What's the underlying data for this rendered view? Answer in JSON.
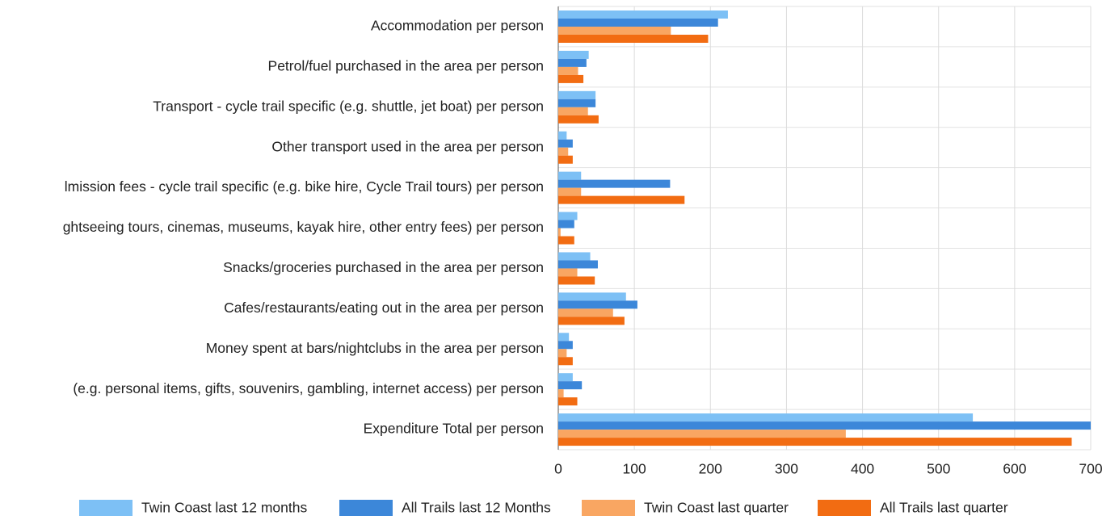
{
  "chart_data": {
    "type": "barh",
    "categories": [
      "Accommodation per person",
      "Petrol/fuel purchased in the area per person",
      "Transport - cycle trail specific (e.g. shuttle, jet boat) per person",
      "Other transport used in the area per person",
      "lmission fees - cycle trail specific (e.g. bike hire, Cycle Trail tours) per person",
      "ghtseeing tours, cinemas, museums, kayak hire, other entry fees) per person",
      "Snacks/groceries purchased in the area  per person",
      "Cafes/restaurants/eating out in the area per person",
      "Money spent at bars/nightclubs in the area per person",
      "(e.g. personal items,  gifts, souvenirs, gambling, internet access) per person",
      "Expenditure Total per person"
    ],
    "series": [
      {
        "name": "Twin Coast last 12 months",
        "color": "#7dc0f5",
        "values": [
          223,
          40,
          49,
          11,
          30,
          25,
          42,
          89,
          14,
          19,
          545
        ]
      },
      {
        "name": "All Trails last 12 Months",
        "color": "#3c87d9",
        "values": [
          210,
          37,
          49,
          19,
          147,
          21,
          52,
          104,
          19,
          31,
          700
        ]
      },
      {
        "name": "Twin Coast last quarter",
        "color": "#f9a662",
        "values": [
          148,
          26,
          39,
          13,
          30,
          3,
          25,
          72,
          11,
          7,
          378
        ]
      },
      {
        "name": "All Trails last quarter",
        "color": "#f26c12",
        "values": [
          197,
          33,
          53,
          19,
          166,
          21,
          48,
          87,
          19,
          25,
          675
        ]
      }
    ],
    "xlim": [
      0,
      700
    ],
    "xticks": [
      0,
      100,
      200,
      300,
      400,
      500,
      600,
      700
    ],
    "grid": true,
    "legend": "bottom"
  }
}
